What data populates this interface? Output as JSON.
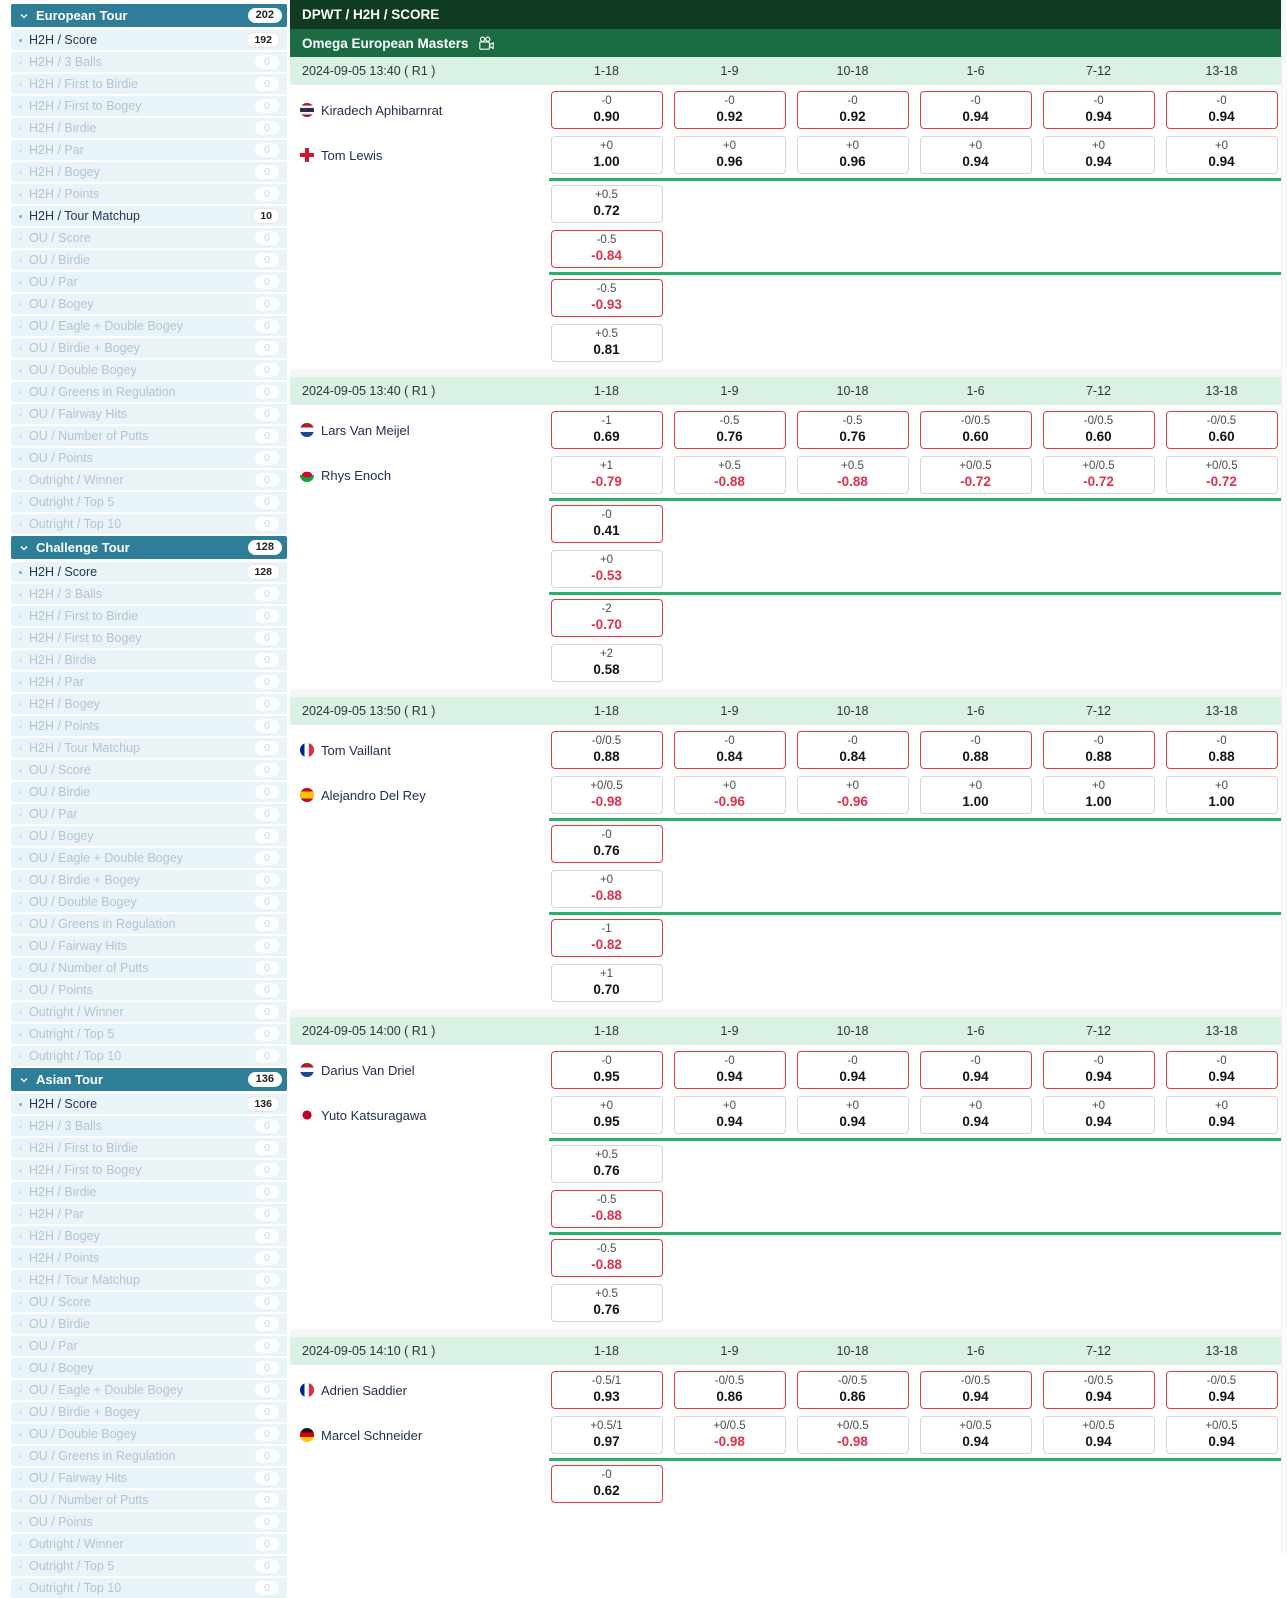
{
  "theme": {
    "sidebar_teal": "#2E7E99",
    "topbar_dark_green": "#0E3B22",
    "tournament_green": "#1B6B44",
    "header_light_green": "#D9F2E4",
    "odds_red_border": "#E23B3F",
    "odds_grey_border": "#D6D6D6",
    "negative_value_red": "#E0314B",
    "divider_green": "#2BAF6A"
  },
  "sidebar": {
    "sections": [
      {
        "name": "European Tour",
        "count": "202",
        "items": [
          {
            "label": "H2H / Score",
            "count": "192",
            "active": true
          },
          {
            "label": "H2H / 3 Balls",
            "count": "0",
            "active": false
          },
          {
            "label": "H2H / First to Birdie",
            "count": "0",
            "active": false
          },
          {
            "label": "H2H / First to Bogey",
            "count": "0",
            "active": false
          },
          {
            "label": "H2H / Birdie",
            "count": "0",
            "active": false
          },
          {
            "label": "H2H / Par",
            "count": "0",
            "active": false
          },
          {
            "label": "H2H / Bogey",
            "count": "0",
            "active": false
          },
          {
            "label": "H2H / Points",
            "count": "0",
            "active": false
          },
          {
            "label": "H2H / Tour Matchup",
            "count": "10",
            "active": true
          },
          {
            "label": "OU / Score",
            "count": "0",
            "active": false
          },
          {
            "label": "OU / Birdie",
            "count": "0",
            "active": false
          },
          {
            "label": "OU / Par",
            "count": "0",
            "active": false
          },
          {
            "label": "OU / Bogey",
            "count": "0",
            "active": false
          },
          {
            "label": "OU / Eagle + Double Bogey",
            "count": "0",
            "active": false
          },
          {
            "label": "OU / Birdie + Bogey",
            "count": "0",
            "active": false
          },
          {
            "label": "OU / Double Bogey",
            "count": "0",
            "active": false
          },
          {
            "label": "OU / Greens in Regulation",
            "count": "0",
            "active": false
          },
          {
            "label": "OU / Fairway Hits",
            "count": "0",
            "active": false
          },
          {
            "label": "OU / Number of Putts",
            "count": "0",
            "active": false
          },
          {
            "label": "OU / Points",
            "count": "0",
            "active": false
          },
          {
            "label": "Outright / Winner",
            "count": "0",
            "active": false
          },
          {
            "label": "Outright / Top 5",
            "count": "0",
            "active": false
          },
          {
            "label": "Outright / Top 10",
            "count": "0",
            "active": false
          }
        ]
      },
      {
        "name": "Challenge Tour",
        "count": "128",
        "items": [
          {
            "label": "H2H / Score",
            "count": "128",
            "active": true
          },
          {
            "label": "H2H / 3 Balls",
            "count": "0",
            "active": false
          },
          {
            "label": "H2H / First to Birdie",
            "count": "0",
            "active": false
          },
          {
            "label": "H2H / First to Bogey",
            "count": "0",
            "active": false
          },
          {
            "label": "H2H / Birdie",
            "count": "0",
            "active": false
          },
          {
            "label": "H2H / Par",
            "count": "0",
            "active": false
          },
          {
            "label": "H2H / Bogey",
            "count": "0",
            "active": false
          },
          {
            "label": "H2H / Points",
            "count": "0",
            "active": false
          },
          {
            "label": "H2H / Tour Matchup",
            "count": "0",
            "active": false
          },
          {
            "label": "OU / Score",
            "count": "0",
            "active": false
          },
          {
            "label": "OU / Birdie",
            "count": "0",
            "active": false
          },
          {
            "label": "OU / Par",
            "count": "0",
            "active": false
          },
          {
            "label": "OU / Bogey",
            "count": "0",
            "active": false
          },
          {
            "label": "OU / Eagle + Double Bogey",
            "count": "0",
            "active": false
          },
          {
            "label": "OU / Birdie + Bogey",
            "count": "0",
            "active": false
          },
          {
            "label": "OU / Double Bogey",
            "count": "0",
            "active": false
          },
          {
            "label": "OU / Greens in Regulation",
            "count": "0",
            "active": false
          },
          {
            "label": "OU / Fairway Hits",
            "count": "0",
            "active": false
          },
          {
            "label": "OU / Number of Putts",
            "count": "0",
            "active": false
          },
          {
            "label": "OU / Points",
            "count": "0",
            "active": false
          },
          {
            "label": "Outright / Winner",
            "count": "0",
            "active": false
          },
          {
            "label": "Outright / Top 5",
            "count": "0",
            "active": false
          },
          {
            "label": "Outright / Top 10",
            "count": "0",
            "active": false
          }
        ]
      },
      {
        "name": "Asian Tour",
        "count": "136",
        "items": [
          {
            "label": "H2H / Score",
            "count": "136",
            "active": true
          },
          {
            "label": "H2H / 3 Balls",
            "count": "0",
            "active": false
          },
          {
            "label": "H2H / First to Birdie",
            "count": "0",
            "active": false
          },
          {
            "label": "H2H / First to Bogey",
            "count": "0",
            "active": false
          },
          {
            "label": "H2H / Birdie",
            "count": "0",
            "active": false
          },
          {
            "label": "H2H / Par",
            "count": "0",
            "active": false
          },
          {
            "label": "H2H / Bogey",
            "count": "0",
            "active": false
          },
          {
            "label": "H2H / Points",
            "count": "0",
            "active": false
          },
          {
            "label": "H2H / Tour Matchup",
            "count": "0",
            "active": false
          },
          {
            "label": "OU / Score",
            "count": "0",
            "active": false
          },
          {
            "label": "OU / Birdie",
            "count": "0",
            "active": false
          },
          {
            "label": "OU / Par",
            "count": "0",
            "active": false
          },
          {
            "label": "OU / Bogey",
            "count": "0",
            "active": false
          },
          {
            "label": "OU / Eagle + Double Bogey",
            "count": "0",
            "active": false
          },
          {
            "label": "OU / Birdie + Bogey",
            "count": "0",
            "active": false
          },
          {
            "label": "OU / Double Bogey",
            "count": "0",
            "active": false
          },
          {
            "label": "OU / Greens in Regulation",
            "count": "0",
            "active": false
          },
          {
            "label": "OU / Fairway Hits",
            "count": "0",
            "active": false
          },
          {
            "label": "OU / Number of Putts",
            "count": "0",
            "active": false
          },
          {
            "label": "OU / Points",
            "count": "0",
            "active": false
          },
          {
            "label": "Outright / Winner",
            "count": "0",
            "active": false
          },
          {
            "label": "Outright / Top 5",
            "count": "0",
            "active": false
          },
          {
            "label": "Outright / Top 10",
            "count": "0",
            "active": false
          }
        ]
      }
    ]
  },
  "main": {
    "breadcrumb": "DPWT / H2H / SCORE",
    "tournament": "Omega European Masters",
    "columns": [
      "1-18",
      "1-9",
      "10-18",
      "1-6",
      "7-12",
      "13-18"
    ],
    "matches": [
      {
        "date": "2024-09-05 13:40 ( R1 )",
        "players": [
          {
            "name": "Kiradech Aphibarnrat",
            "flag": "thailand",
            "variant": "p1",
            "cells": [
              [
                "-0",
                "0.90"
              ],
              [
                "-0",
                "0.92"
              ],
              [
                "-0",
                "0.92"
              ],
              [
                "-0",
                "0.94"
              ],
              [
                "-0",
                "0.94"
              ],
              [
                "-0",
                "0.94"
              ]
            ]
          },
          {
            "name": "Tom Lewis",
            "flag": "england",
            "variant": "p2",
            "cells": [
              [
                "+0",
                "1.00"
              ],
              [
                "+0",
                "0.96"
              ],
              [
                "+0",
                "0.96"
              ],
              [
                "+0",
                "0.94"
              ],
              [
                "+0",
                "0.94"
              ],
              [
                "+0",
                "0.94"
              ]
            ]
          }
        ],
        "extras": [
          [
            [
              "+0.5",
              "0.72",
              "p2"
            ],
            [
              "-0.5",
              "-0.84",
              "p1"
            ]
          ],
          [
            [
              "-0.5",
              "-0.93",
              "p1"
            ],
            [
              "+0.5",
              "0.81",
              "p2"
            ]
          ]
        ]
      },
      {
        "date": "2024-09-05 13:40 ( R1 )",
        "players": [
          {
            "name": "Lars Van Meijel",
            "flag": "netherlands",
            "variant": "p1",
            "cells": [
              [
                "-1",
                "0.69"
              ],
              [
                "-0.5",
                "0.76"
              ],
              [
                "-0.5",
                "0.76"
              ],
              [
                "-0/0.5",
                "0.60"
              ],
              [
                "-0/0.5",
                "0.60"
              ],
              [
                "-0/0.5",
                "0.60"
              ]
            ]
          },
          {
            "name": "Rhys Enoch",
            "flag": "wales",
            "variant": "p2",
            "cells": [
              [
                "+1",
                "-0.79"
              ],
              [
                "+0.5",
                "-0.88"
              ],
              [
                "+0.5",
                "-0.88"
              ],
              [
                "+0/0.5",
                "-0.72"
              ],
              [
                "+0/0.5",
                "-0.72"
              ],
              [
                "+0/0.5",
                "-0.72"
              ]
            ]
          }
        ],
        "extras": [
          [
            [
              "-0",
              "0.41",
              "p1"
            ],
            [
              "+0",
              "-0.53",
              "p2"
            ]
          ],
          [
            [
              "-2",
              "-0.70",
              "p1"
            ],
            [
              "+2",
              "0.58",
              "p2"
            ]
          ]
        ]
      },
      {
        "date": "2024-09-05 13:50 ( R1 )",
        "players": [
          {
            "name": "Tom Vaillant",
            "flag": "france",
            "variant": "p1",
            "cells": [
              [
                "-0/0.5",
                "0.88"
              ],
              [
                "-0",
                "0.84"
              ],
              [
                "-0",
                "0.84"
              ],
              [
                "-0",
                "0.88"
              ],
              [
                "-0",
                "0.88"
              ],
              [
                "-0",
                "0.88"
              ]
            ]
          },
          {
            "name": "Alejandro Del Rey",
            "flag": "spain",
            "variant": "p2",
            "cells": [
              [
                "+0/0.5",
                "-0.98"
              ],
              [
                "+0",
                "-0.96"
              ],
              [
                "+0",
                "-0.96"
              ],
              [
                "+0",
                "1.00"
              ],
              [
                "+0",
                "1.00"
              ],
              [
                "+0",
                "1.00"
              ]
            ]
          }
        ],
        "extras": [
          [
            [
              "-0",
              "0.76",
              "p1"
            ],
            [
              "+0",
              "-0.88",
              "p2"
            ]
          ],
          [
            [
              "-1",
              "-0.82",
              "p1"
            ],
            [
              "+1",
              "0.70",
              "p2"
            ]
          ]
        ]
      },
      {
        "date": "2024-09-05 14:00 ( R1 )",
        "players": [
          {
            "name": "Darius Van Driel",
            "flag": "netherlands",
            "variant": "p1",
            "cells": [
              [
                "-0",
                "0.95"
              ],
              [
                "-0",
                "0.94"
              ],
              [
                "-0",
                "0.94"
              ],
              [
                "-0",
                "0.94"
              ],
              [
                "-0",
                "0.94"
              ],
              [
                "-0",
                "0.94"
              ]
            ]
          },
          {
            "name": "Yuto Katsuragawa",
            "flag": "japan",
            "variant": "p2",
            "cells": [
              [
                "+0",
                "0.95"
              ],
              [
                "+0",
                "0.94"
              ],
              [
                "+0",
                "0.94"
              ],
              [
                "+0",
                "0.94"
              ],
              [
                "+0",
                "0.94"
              ],
              [
                "+0",
                "0.94"
              ]
            ]
          }
        ],
        "extras": [
          [
            [
              "+0.5",
              "0.76",
              "p2"
            ],
            [
              "-0.5",
              "-0.88",
              "p1"
            ]
          ],
          [
            [
              "-0.5",
              "-0.88",
              "p1"
            ],
            [
              "+0.5",
              "0.76",
              "p2"
            ]
          ]
        ]
      },
      {
        "date": "2024-09-05 14:10 ( R1 )",
        "players": [
          {
            "name": "Adrien Saddier",
            "flag": "france",
            "variant": "p1",
            "cells": [
              [
                "-0.5/1",
                "0.93"
              ],
              [
                "-0/0.5",
                "0.86"
              ],
              [
                "-0/0.5",
                "0.86"
              ],
              [
                "-0/0.5",
                "0.94"
              ],
              [
                "-0/0.5",
                "0.94"
              ],
              [
                "-0/0.5",
                "0.94"
              ]
            ]
          },
          {
            "name": "Marcel Schneider",
            "flag": "germany",
            "variant": "p2",
            "cells": [
              [
                "+0.5/1",
                "0.97"
              ],
              [
                "+0/0.5",
                "-0.98"
              ],
              [
                "+0/0.5",
                "-0.98"
              ],
              [
                "+0/0.5",
                "0.94"
              ],
              [
                "+0/0.5",
                "0.94"
              ],
              [
                "+0/0.5",
                "0.94"
              ]
            ]
          }
        ],
        "extras": [
          [
            [
              "-0",
              "0.62",
              "p1"
            ]
          ]
        ]
      }
    ]
  }
}
